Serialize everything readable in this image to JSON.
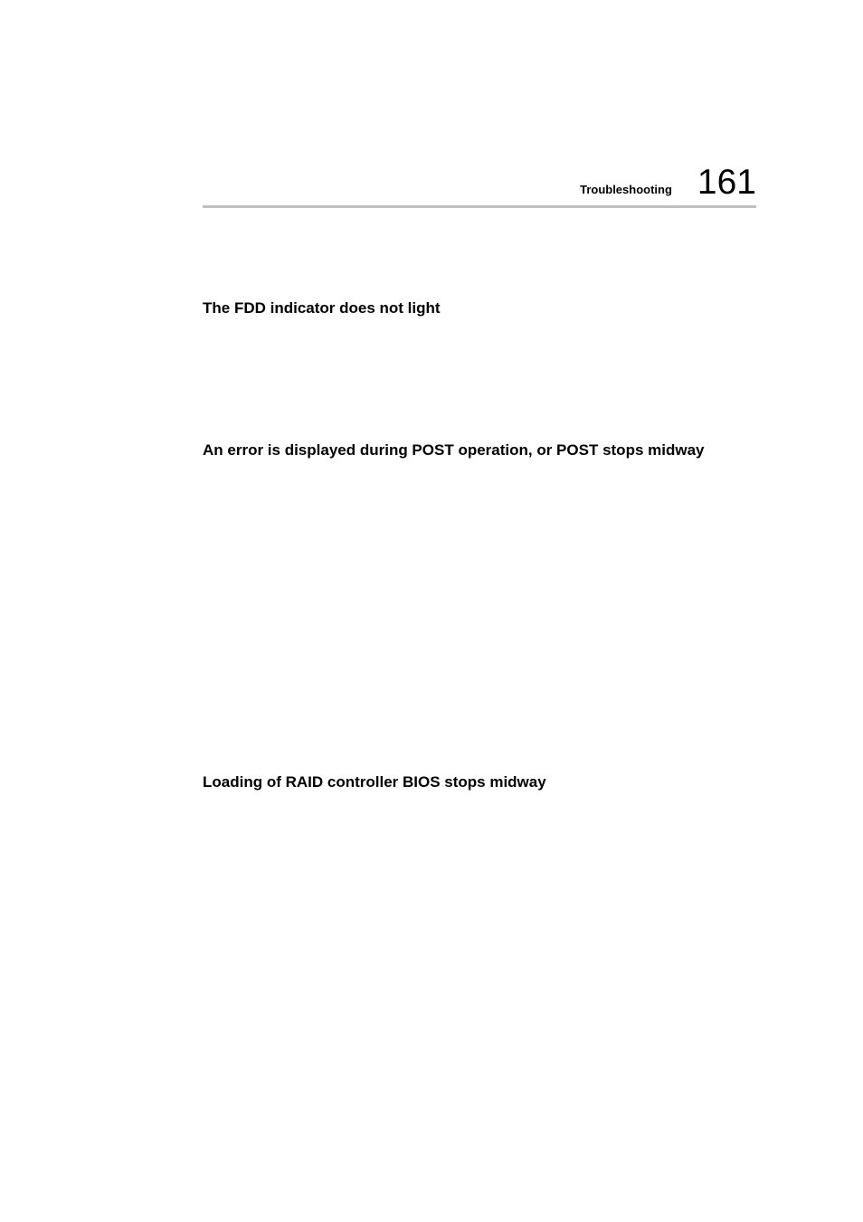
{
  "document": {
    "background_color": "#ffffff",
    "text_color": "#000000",
    "divider_color": "#c0c0c0",
    "font_family": "Arial, Helvetica, sans-serif"
  },
  "header": {
    "section_label": "Troubleshooting",
    "page_number": "161",
    "label_fontsize": 13,
    "number_fontsize": 39
  },
  "sections": [
    {
      "heading": "The FDD indicator does not light",
      "heading_fontsize": 17
    },
    {
      "heading": "An error is displayed during POST operation, or POST stops midway",
      "heading_fontsize": 17
    },
    {
      "heading": "Loading of RAID controller BIOS stops midway",
      "heading_fontsize": 17
    }
  ]
}
